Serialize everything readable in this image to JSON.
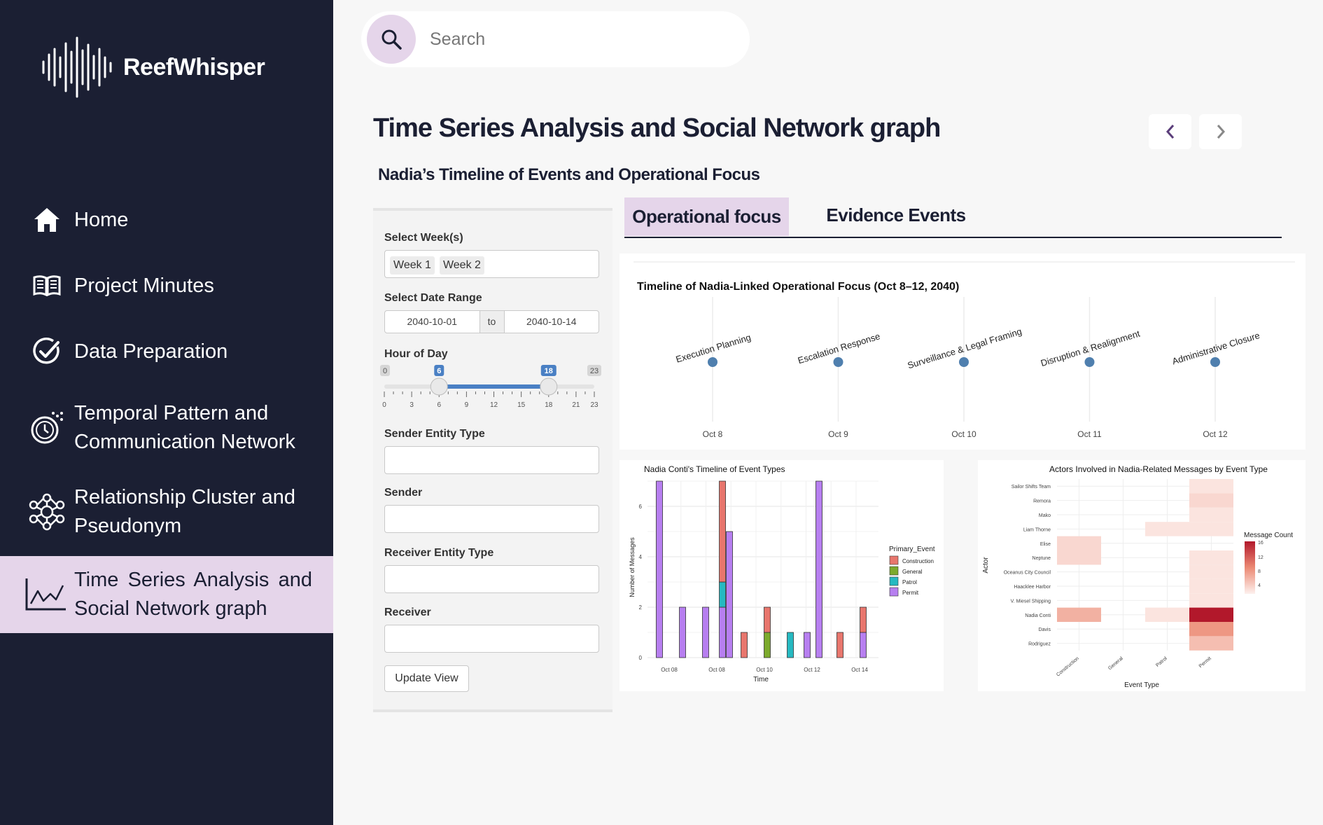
{
  "app": {
    "name": "ReefWhisper"
  },
  "sidebar": {
    "items": [
      {
        "label": "Home",
        "icon": "home-icon"
      },
      {
        "label": "Project Minutes",
        "icon": "book-icon"
      },
      {
        "label": "Data Preparation",
        "icon": "check-circle-icon"
      },
      {
        "label": "Temporal Pattern and Communication Network",
        "icon": "stopwatch-icon"
      },
      {
        "label": "Relationship Cluster and Pseudonym",
        "icon": "network-icon"
      },
      {
        "label": "Time Series Analysis and Social Network graph",
        "icon": "line-chart-icon",
        "active": true
      }
    ]
  },
  "search": {
    "placeholder": "Search"
  },
  "page": {
    "title": "Time Series Analysis and Social Network graph",
    "subtitle": "Nadia’s Timeline of Events and Operational Focus"
  },
  "filters": {
    "weeks_label": "Select Week(s)",
    "weeks": [
      "Week 1",
      "Week 2"
    ],
    "date_label": "Select Date Range",
    "date_start": "2040-10-01",
    "date_sep": "to",
    "date_end": "2040-10-14",
    "hour_label": "Hour of Day",
    "hour_min": 0,
    "hour_max": 23,
    "hour_from": 6,
    "hour_to": 18,
    "hour_ticks": [
      "0",
      "3",
      "6",
      "9",
      "12",
      "15",
      "18",
      "21",
      "23"
    ],
    "sender_type_label": "Sender Entity Type",
    "sender_type_value": "",
    "sender_label": "Sender",
    "sender_value": "",
    "receiver_type_label": "Receiver Entity Type",
    "receiver_type_value": "",
    "receiver_label": "Receiver",
    "receiver_value": "",
    "update_label": "Update View"
  },
  "tabs": [
    {
      "label": "Operational focus",
      "active": true
    },
    {
      "label": "Evidence Events",
      "active": false
    }
  ],
  "colors": {
    "sidebar_bg": "#1b1f33",
    "accent": "#e5d5ea",
    "slider": "#4a80c4",
    "point": "#4f7fae",
    "construction": "#e8766d",
    "general": "#7caa2d",
    "patrol": "#26b9c1",
    "permit": "#b77ff0"
  },
  "chart_data": [
    {
      "type": "scatter",
      "title": "Timeline of Nadia-Linked Operational Focus (Oct 8–12, 2040)",
      "x": [
        "Oct 8",
        "Oct 9",
        "Oct 10",
        "Oct 11",
        "Oct 12"
      ],
      "labels": [
        "Execution Planning",
        "Escalation Response",
        "Surveillance & Legal Framing",
        "Disruption & Realignment",
        "Administrative Closure"
      ]
    },
    {
      "type": "bar",
      "title": "Nadia Conti's Timeline of Event Types",
      "xlabel": "Time",
      "ylabel": "Number of Messages",
      "ylim": [
        0,
        7
      ],
      "yticks": [
        "0",
        "2",
        "4",
        "6"
      ],
      "xticks": [
        "Oct 08",
        "Oct 08",
        "Oct 10",
        "Oct 12",
        "Oct 14"
      ],
      "legend_title": "Primary_Event",
      "legend": [
        "Construction",
        "General",
        "Patrol",
        "Permit"
      ],
      "bars": [
        {
          "construction": 0,
          "general": 0,
          "patrol": 0,
          "permit": 7
        },
        {
          "construction": 0,
          "general": 0,
          "patrol": 0,
          "permit": 2
        },
        {
          "construction": 0,
          "general": 0,
          "patrol": 0,
          "permit": 2
        },
        {
          "construction": 4,
          "general": 0,
          "patrol": 1,
          "permit": 2
        },
        {
          "construction": 0,
          "general": 0,
          "patrol": 0,
          "permit": 5
        },
        {
          "construction": 1,
          "general": 0,
          "patrol": 0,
          "permit": 0
        },
        {
          "construction": 1,
          "general": 1,
          "patrol": 0,
          "permit": 0
        },
        {
          "construction": 0,
          "general": 0,
          "patrol": 1,
          "permit": 0
        },
        {
          "construction": 0,
          "general": 0,
          "patrol": 0,
          "permit": 1
        },
        {
          "construction": 0,
          "general": 0,
          "patrol": 0,
          "permit": 7
        },
        {
          "construction": 1,
          "general": 0,
          "patrol": 0,
          "permit": 0
        },
        {
          "construction": 1,
          "general": 0,
          "patrol": 0,
          "permit": 1
        }
      ]
    },
    {
      "type": "heatmap",
      "title": "Actors Involved in Nadia-Related Messages by Event Type",
      "xlabel": "Event Type",
      "ylabel": "Actor",
      "x": [
        "Construction",
        "General",
        "Patrol",
        "Permit"
      ],
      "y": [
        "Sailor Shifts Team",
        "Remora",
        "Mako",
        "Liam Thorne",
        "Elise",
        "Neptune",
        "Oceanus City Council",
        "Haacklee Harbor",
        "V. Miesel Shipping",
        "Nadia Conti",
        "Davis",
        "Rodriguez"
      ],
      "values": [
        [
          0,
          0,
          0,
          1
        ],
        [
          0,
          0,
          0,
          2
        ],
        [
          0,
          0,
          0,
          1
        ],
        [
          0,
          0,
          1,
          1
        ],
        [
          2,
          0,
          0,
          0
        ],
        [
          2,
          0,
          0,
          1
        ],
        [
          0,
          0,
          0,
          1
        ],
        [
          0,
          0,
          0,
          1
        ],
        [
          0,
          0,
          0,
          1
        ],
        [
          5,
          0,
          1,
          16
        ],
        [
          0,
          0,
          0,
          7
        ],
        [
          0,
          0,
          0,
          4
        ]
      ],
      "legend_title": "Message Count",
      "legend_ticks": [
        "16",
        "12",
        "8",
        "4"
      ],
      "scale": [
        0,
        16
      ]
    }
  ]
}
